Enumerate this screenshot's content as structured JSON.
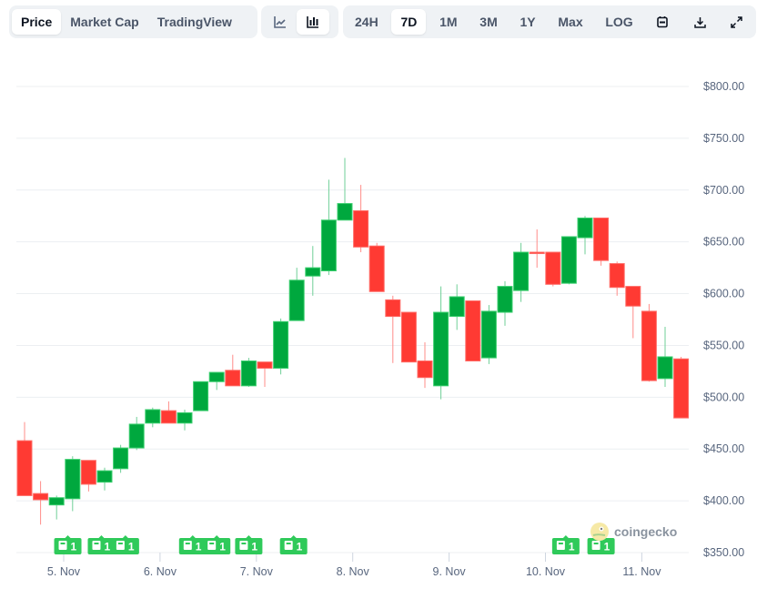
{
  "toolbar": {
    "view_tabs": [
      {
        "label": "Price",
        "active": true
      },
      {
        "label": "Market Cap",
        "active": false
      },
      {
        "label": "TradingView",
        "active": false
      }
    ],
    "chart_types": [
      {
        "icon": "line-chart-icon",
        "active": false
      },
      {
        "icon": "candlestick-chart-icon",
        "active": true
      }
    ],
    "ranges": [
      {
        "label": "24H",
        "active": false
      },
      {
        "label": "7D",
        "active": true
      },
      {
        "label": "1M",
        "active": false
      },
      {
        "label": "3M",
        "active": false
      },
      {
        "label": "1Y",
        "active": false
      },
      {
        "label": "Max",
        "active": false
      },
      {
        "label": "LOG",
        "active": false
      }
    ],
    "actions": [
      {
        "icon": "calendar-icon"
      },
      {
        "icon": "download-icon"
      },
      {
        "icon": "expand-icon"
      }
    ]
  },
  "brand": {
    "name": "coingecko"
  },
  "colors": {
    "up": "#00a83e",
    "down": "#ff3a33",
    "up_wick": "#6fcf97",
    "down_wick": "#ff8c88",
    "grid": "#eceff2",
    "news": "#2fca5a"
  },
  "chart_data": {
    "type": "candlestick",
    "interval": "4h",
    "ylim": [
      350,
      800
    ],
    "y_ticks": [
      "$350.00",
      "$400.00",
      "$450.00",
      "$500.00",
      "$550.00",
      "$600.00",
      "$650.00",
      "$700.00",
      "$750.00",
      "$800.00"
    ],
    "x_ticks": [
      "5. Nov",
      "6. Nov",
      "7. Nov",
      "8. Nov",
      "9. Nov",
      "10. Nov",
      "11. Nov"
    ],
    "grid": true,
    "ohlc": [
      [
        458,
        476,
        405,
        405
      ],
      [
        407,
        419,
        377,
        401
      ],
      [
        396,
        405,
        382,
        403
      ],
      [
        402,
        443,
        390,
        440
      ],
      [
        439,
        439,
        409,
        416
      ],
      [
        418,
        432,
        410,
        429
      ],
      [
        431,
        454,
        427,
        451
      ],
      [
        451,
        481,
        449,
        474
      ],
      [
        475,
        490,
        471,
        488
      ],
      [
        487,
        496,
        475,
        475
      ],
      [
        475,
        488,
        468,
        485
      ],
      [
        487,
        515,
        487,
        515
      ],
      [
        515,
        524,
        507,
        524
      ],
      [
        526,
        541,
        511,
        511
      ],
      [
        511,
        538,
        510,
        535
      ],
      [
        534,
        534,
        510,
        528
      ],
      [
        528,
        576,
        522,
        573
      ],
      [
        574,
        625,
        574,
        613
      ],
      [
        617,
        646,
        598,
        625
      ],
      [
        622,
        710,
        618,
        671
      ],
      [
        671,
        731,
        671,
        687
      ],
      [
        680,
        705,
        640,
        645
      ],
      [
        646,
        649,
        602,
        602
      ],
      [
        594,
        598,
        533,
        578
      ],
      [
        582,
        582,
        534,
        534
      ],
      [
        535,
        553,
        509,
        519
      ],
      [
        511,
        607,
        498,
        582
      ],
      [
        578,
        609,
        565,
        597
      ],
      [
        593,
        593,
        535,
        535
      ],
      [
        538,
        589,
        532,
        583
      ],
      [
        582,
        612,
        569,
        607
      ],
      [
        603,
        649,
        592,
        640
      ],
      [
        640,
        662,
        625,
        639
      ],
      [
        640,
        640,
        607,
        609
      ],
      [
        610,
        655,
        609,
        655
      ],
      [
        654,
        675,
        638,
        673
      ],
      [
        673,
        673,
        627,
        632
      ],
      [
        629,
        631,
        598,
        606
      ],
      [
        607,
        607,
        557,
        588
      ],
      [
        583,
        590,
        515,
        516
      ],
      [
        518,
        568,
        510,
        539
      ],
      [
        537,
        539,
        480,
        480
      ]
    ],
    "news_markers": [
      {
        "candle": 2.7,
        "count": "1"
      },
      {
        "candle": 4.8,
        "count": "1"
      },
      {
        "candle": 6.3,
        "count": "1"
      },
      {
        "candle": 10.5,
        "count": "1"
      },
      {
        "candle": 12,
        "count": "1"
      },
      {
        "candle": 14,
        "count": "1"
      },
      {
        "candle": 16.8,
        "count": "1"
      },
      {
        "candle": 33.8,
        "count": "1"
      },
      {
        "candle": 36,
        "count": "1"
      }
    ]
  }
}
